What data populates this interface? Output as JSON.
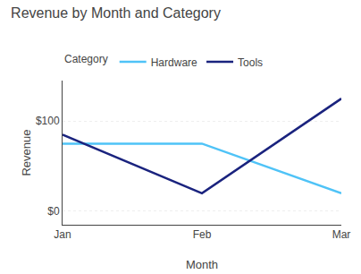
{
  "chart_data": {
    "type": "line",
    "title": "Revenue by Month and Category",
    "x_label": "Month",
    "y_label": "Revenue",
    "legend_title": "Category",
    "categories": [
      "Jan",
      "Feb",
      "Mar"
    ],
    "series": [
      {
        "name": "Hardware",
        "color": "#4FC3F7",
        "values": [
          75,
          75,
          20
        ]
      },
      {
        "name": "Tools",
        "color": "#1A237E",
        "values": [
          85,
          20,
          125
        ]
      }
    ],
    "ylim": [
      -15,
      145
    ],
    "yticks": [
      {
        "value": 0,
        "label": "$0"
      },
      {
        "value": 100,
        "label": "$100"
      }
    ],
    "grid": true,
    "legend": "top"
  }
}
